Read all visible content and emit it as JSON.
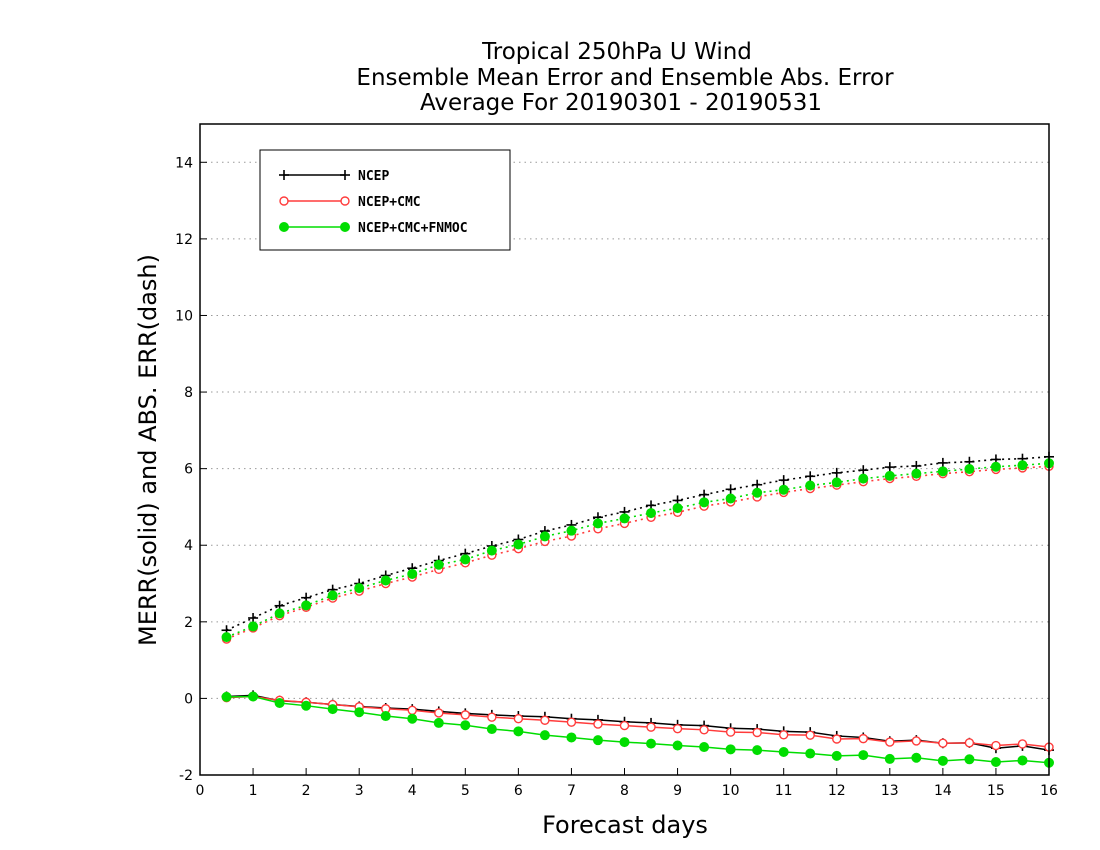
{
  "chart_data": {
    "type": "line",
    "title": [
      "Tropical 250hPa U Wind",
      "Ensemble Mean Error and Ensemble Abs. Error",
      "Average For 20190301 - 20190531"
    ],
    "xlabel": "Forecast days",
    "ylabel": "MERR(solid) and ABS. ERR(dash)",
    "xlim": [
      0,
      16
    ],
    "ylim": [
      -2,
      15
    ],
    "xticks": [
      0,
      1,
      2,
      3,
      4,
      5,
      6,
      7,
      8,
      9,
      10,
      11,
      12,
      13,
      14,
      15,
      16
    ],
    "yticks": [
      -2,
      0,
      2,
      4,
      6,
      8,
      10,
      12,
      14
    ],
    "grid": "horizontal dotted",
    "legend_position": "top-left",
    "x": [
      0.5,
      1,
      1.5,
      2,
      2.5,
      3,
      3.5,
      4,
      4.5,
      5,
      5.5,
      6,
      6.5,
      7,
      7.5,
      8,
      8.5,
      9,
      9.5,
      10,
      10.5,
      11,
      11.5,
      12,
      12.5,
      13,
      13.5,
      14,
      14.5,
      15,
      15.5,
      16
    ],
    "series": [
      {
        "name": "NCEP",
        "color": "#000000",
        "marker": "plus",
        "mean_error": [
          0.05,
          0.08,
          -0.06,
          -0.1,
          -0.16,
          -0.21,
          -0.25,
          -0.28,
          -0.34,
          -0.39,
          -0.43,
          -0.46,
          -0.48,
          -0.53,
          -0.56,
          -0.61,
          -0.64,
          -0.69,
          -0.71,
          -0.78,
          -0.8,
          -0.86,
          -0.88,
          -0.98,
          -1.02,
          -1.12,
          -1.09,
          -1.17,
          -1.16,
          -1.3,
          -1.24,
          -1.35
        ],
        "abs_error": [
          1.78,
          2.1,
          2.42,
          2.63,
          2.84,
          3.0,
          3.21,
          3.4,
          3.6,
          3.78,
          3.98,
          4.15,
          4.37,
          4.53,
          4.73,
          4.87,
          5.04,
          5.17,
          5.32,
          5.46,
          5.58,
          5.7,
          5.8,
          5.89,
          5.96,
          6.04,
          6.07,
          6.15,
          6.18,
          6.24,
          6.26,
          6.31
        ]
      },
      {
        "name": "NCEP+CMC",
        "color": "#ff3b3b",
        "marker": "open-circle",
        "mean_error": [
          0.02,
          0.05,
          -0.05,
          -0.1,
          -0.16,
          -0.22,
          -0.27,
          -0.31,
          -0.38,
          -0.43,
          -0.49,
          -0.53,
          -0.57,
          -0.62,
          -0.67,
          -0.71,
          -0.75,
          -0.79,
          -0.82,
          -0.88,
          -0.89,
          -0.95,
          -0.96,
          -1.06,
          -1.05,
          -1.14,
          -1.11,
          -1.17,
          -1.16,
          -1.23,
          -1.19,
          -1.27
        ],
        "abs_error": [
          1.55,
          1.84,
          2.16,
          2.38,
          2.62,
          2.8,
          3.0,
          3.17,
          3.37,
          3.54,
          3.74,
          3.91,
          4.1,
          4.24,
          4.43,
          4.57,
          4.73,
          4.86,
          5.02,
          5.13,
          5.26,
          5.38,
          5.48,
          5.57,
          5.66,
          5.74,
          5.8,
          5.87,
          5.92,
          5.98,
          6.02,
          6.06
        ]
      },
      {
        "name": "NCEP+CMC+FNMOC",
        "color": "#00dd00",
        "marker": "filled-circle",
        "mean_error": [
          0.04,
          0.05,
          -0.12,
          -0.19,
          -0.28,
          -0.36,
          -0.46,
          -0.53,
          -0.64,
          -0.7,
          -0.8,
          -0.86,
          -0.96,
          -1.02,
          -1.09,
          -1.14,
          -1.18,
          -1.23,
          -1.27,
          -1.33,
          -1.35,
          -1.4,
          -1.44,
          -1.5,
          -1.48,
          -1.58,
          -1.55,
          -1.63,
          -1.59,
          -1.66,
          -1.62,
          -1.68
        ],
        "abs_error": [
          1.6,
          1.88,
          2.22,
          2.43,
          2.69,
          2.88,
          3.08,
          3.25,
          3.49,
          3.63,
          3.86,
          4.02,
          4.23,
          4.38,
          4.57,
          4.7,
          4.84,
          4.97,
          5.12,
          5.22,
          5.37,
          5.45,
          5.56,
          5.64,
          5.74,
          5.81,
          5.87,
          5.93,
          5.99,
          6.05,
          6.09,
          6.14
        ]
      }
    ]
  }
}
